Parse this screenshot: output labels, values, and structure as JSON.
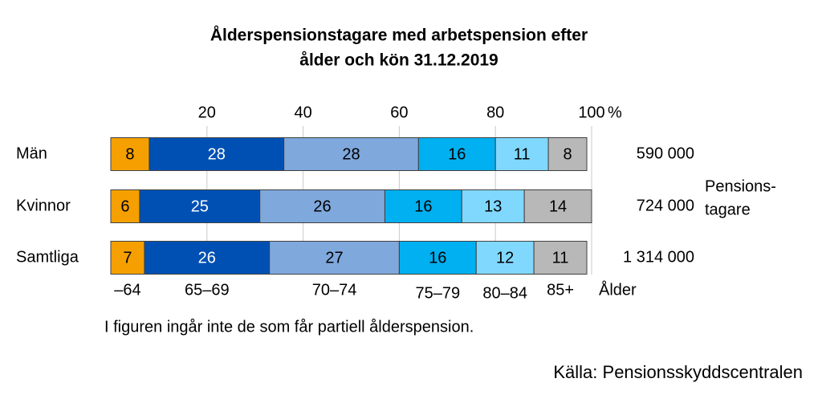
{
  "chart_data": {
    "type": "stacked-bar-horizontal",
    "title": [
      "Ålderspensionstagare med arbetspension efter",
      "ålder och kön 31.12.2019"
    ],
    "categories": [
      "Män",
      "Kvinnor",
      "Samtliga"
    ],
    "series": [
      {
        "name": "–64",
        "color": "#f5a000",
        "values": [
          8,
          6,
          7
        ]
      },
      {
        "name": "65–69",
        "color": "#0050b4",
        "values": [
          28,
          25,
          26
        ]
      },
      {
        "name": "70–74",
        "color": "#7fa8dc",
        "values": [
          28,
          26,
          27
        ]
      },
      {
        "name": "75–79",
        "color": "#00b0f0",
        "values": [
          16,
          16,
          16
        ]
      },
      {
        "name": "80–84",
        "color": "#80d8ff",
        "values": [
          11,
          13,
          12
        ]
      },
      {
        "name": "85+",
        "color": "#b8b8b8",
        "values": [
          8,
          14,
          11
        ]
      }
    ],
    "xlim": [
      0,
      100
    ],
    "xticks": [
      20,
      40,
      60,
      80,
      100
    ],
    "x_unit": "%",
    "legend_title": "Ålder",
    "grid": true,
    "totals": {
      "values": [
        590000,
        724000,
        1314000
      ],
      "value_labels": [
        "590 000",
        "724 000",
        "1 314 000"
      ],
      "label": [
        "Pensions-",
        "tagare"
      ]
    },
    "note": "I figuren ingår inte de som får partiell ålderspension.",
    "source": "Källa: Pensionsskyddscentralen"
  }
}
